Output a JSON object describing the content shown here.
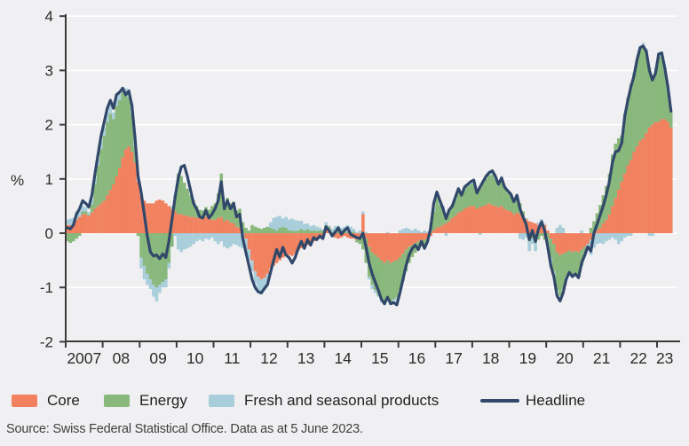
{
  "figure": {
    "y_axis": {
      "unit_label": "%",
      "min": -2,
      "max": 4,
      "ticks": [
        4,
        3,
        2,
        1,
        0,
        -1,
        -2
      ]
    },
    "x_axis": {
      "year_labels": [
        "2007",
        "08",
        "09",
        "10",
        "11",
        "12",
        "13",
        "14",
        "15",
        "16",
        "17",
        "18",
        "19",
        "20",
        "21",
        "22",
        "23"
      ]
    },
    "legend": [
      {
        "label": "Core",
        "color": "#F1815F"
      },
      {
        "label": "Energy",
        "color": "#89B87C"
      },
      {
        "label": "Fresh and seasonal products",
        "color": "#A9CEDB"
      },
      {
        "label": "Headline",
        "color": "#31486B"
      }
    ],
    "source_note": "Source: Swiss Federal Statistical Office. Data as at 5 June 2023.",
    "colors": {
      "background": "#f0f0f2",
      "gridline": "#ffffff",
      "axis": "#3b3b3b",
      "tick_text": "#2b2b2b"
    }
  },
  "chart_data": {
    "type": "bar",
    "subtype": "stacked-bars-with-line-overlay",
    "x_start": "2007-01",
    "x_end": "2023-05",
    "frequency": "monthly",
    "ylim": [
      -2,
      4
    ],
    "ylabel": "%",
    "grid": "horizontal-white",
    "legend_position": "bottom",
    "series": [
      {
        "name": "Core",
        "role": "bar",
        "color": "#F1815F",
        "values": [
          0.15,
          0.15,
          0.18,
          0.25,
          0.3,
          0.35,
          0.35,
          0.32,
          0.38,
          0.45,
          0.5,
          0.55,
          0.6,
          0.7,
          0.8,
          0.9,
          1.05,
          1.2,
          1.4,
          1.55,
          1.6,
          1.5,
          1.3,
          0.95,
          0.7,
          0.6,
          0.55,
          0.55,
          0.55,
          0.6,
          0.62,
          0.6,
          0.55,
          0.5,
          0.45,
          0.4,
          0.35,
          0.35,
          0.33,
          0.32,
          0.3,
          0.3,
          0.28,
          0.28,
          0.3,
          0.3,
          0.28,
          0.25,
          0.25,
          0.28,
          0.3,
          0.22,
          0.25,
          0.2,
          0.18,
          0.12,
          0.1,
          0.0,
          -0.1,
          -0.3,
          -0.5,
          -0.7,
          -0.8,
          -0.85,
          -0.82,
          -0.75,
          -0.65,
          -0.6,
          -0.55,
          -0.5,
          -0.45,
          -0.42,
          -0.4,
          -0.42,
          -0.38,
          -0.32,
          -0.28,
          -0.25,
          -0.22,
          -0.2,
          -0.15,
          -0.12,
          -0.1,
          -0.08,
          0.1,
          0.08,
          -0.05,
          -0.08,
          -0.1,
          -0.08,
          -0.05,
          -0.08,
          -0.1,
          -0.1,
          -0.12,
          -0.1,
          0.35,
          -0.1,
          -0.25,
          -0.35,
          -0.4,
          -0.45,
          -0.5,
          -0.55,
          -0.5,
          -0.55,
          -0.52,
          -0.5,
          -0.45,
          -0.38,
          -0.3,
          -0.25,
          -0.22,
          -0.18,
          -0.15,
          -0.12,
          -0.12,
          -0.1,
          -0.05,
          0.05,
          0.1,
          0.12,
          0.15,
          0.18,
          0.22,
          0.28,
          0.32,
          0.38,
          0.4,
          0.45,
          0.48,
          0.5,
          0.5,
          0.45,
          0.48,
          0.5,
          0.52,
          0.55,
          0.52,
          0.5,
          0.48,
          0.5,
          0.45,
          0.42,
          0.4,
          0.35,
          0.38,
          0.35,
          0.3,
          0.25,
          0.22,
          0.2,
          0.18,
          0.15,
          0.18,
          0.15,
          0.05,
          -0.1,
          -0.2,
          -0.35,
          -0.4,
          -0.38,
          -0.35,
          -0.32,
          -0.35,
          -0.33,
          -0.35,
          -0.3,
          -0.25,
          -0.2,
          -0.12,
          -0.05,
          0.05,
          0.1,
          0.18,
          0.25,
          0.35,
          0.5,
          0.65,
          0.8,
          0.95,
          1.1,
          1.25,
          1.35,
          1.5,
          1.6,
          1.7,
          1.75,
          1.85,
          1.95,
          2.0,
          2.05,
          2.05,
          2.1,
          2.1,
          2.05,
          1.95
        ]
      },
      {
        "name": "Energy",
        "role": "bar",
        "color": "#89B87C",
        "values": [
          -0.15,
          -0.18,
          -0.15,
          -0.1,
          -0.05,
          0.05,
          0.05,
          0.02,
          0.15,
          0.45,
          0.75,
          1.0,
          1.2,
          1.35,
          1.4,
          1.2,
          1.3,
          1.25,
          1.2,
          1.0,
          0.9,
          0.7,
          0.3,
          -0.05,
          -0.45,
          -0.6,
          -0.75,
          -0.85,
          -0.95,
          -1.0,
          -0.95,
          -0.9,
          -0.85,
          -0.55,
          -0.25,
          0.3,
          0.75,
          0.7,
          0.6,
          0.5,
          0.4,
          0.3,
          0.22,
          0.15,
          0.12,
          0.18,
          0.15,
          0.25,
          0.3,
          0.45,
          0.8,
          0.35,
          0.4,
          0.35,
          0.4,
          0.3,
          0.35,
          0.2,
          0.1,
          0.05,
          0.15,
          0.12,
          0.1,
          0.08,
          0.1,
          0.12,
          0.1,
          0.08,
          0.05,
          0.1,
          0.12,
          0.1,
          0.05,
          0.05,
          0.04,
          0.05,
          0.08,
          0.05,
          0.08,
          0.05,
          0.05,
          0.04,
          0.05,
          0.05,
          0.05,
          0.04,
          0.03,
          0.05,
          0.04,
          0.05,
          0.04,
          0.03,
          0.02,
          0.03,
          -0.05,
          -0.1,
          -0.3,
          -0.45,
          -0.55,
          -0.6,
          -0.65,
          -0.7,
          -0.72,
          -0.75,
          -0.7,
          -0.72,
          -0.7,
          -0.68,
          -0.6,
          -0.5,
          -0.4,
          -0.3,
          -0.22,
          -0.18,
          -0.15,
          -0.12,
          -0.1,
          -0.05,
          0.15,
          0.35,
          0.55,
          0.4,
          0.3,
          0.15,
          0.22,
          0.25,
          0.3,
          0.38,
          0.3,
          0.35,
          0.38,
          0.4,
          0.42,
          0.3,
          0.35,
          0.42,
          0.48,
          0.52,
          0.55,
          0.5,
          0.4,
          0.48,
          0.38,
          0.32,
          0.3,
          0.22,
          0.28,
          0.2,
          0.1,
          0.02,
          -0.15,
          -0.1,
          -0.18,
          -0.12,
          -0.05,
          -0.12,
          -0.2,
          -0.35,
          -0.5,
          -0.7,
          -0.75,
          -0.65,
          -0.45,
          -0.38,
          -0.42,
          -0.4,
          -0.42,
          -0.3,
          -0.12,
          0.0,
          0.1,
          0.22,
          0.32,
          0.42,
          0.52,
          0.62,
          0.75,
          0.95,
          1.0,
          0.95,
          0.85,
          1.1,
          1.25,
          1.4,
          1.45,
          1.6,
          1.7,
          1.68,
          1.5,
          1.1,
          0.85,
          0.9,
          1.2,
          1.15,
          0.9,
          0.6,
          0.3
        ]
      },
      {
        "name": "Fresh and seasonal products",
        "role": "bar",
        "color": "#A9CEDB",
        "values": [
          0.1,
          0.12,
          0.1,
          0.15,
          0.12,
          0.1,
          0.08,
          0.05,
          0.08,
          0.1,
          0.12,
          0.15,
          0.15,
          0.18,
          0.15,
          0.12,
          0.15,
          0.12,
          0.1,
          0.12,
          0.15,
          0.18,
          0.15,
          0.1,
          -0.2,
          -0.25,
          -0.2,
          -0.18,
          -0.22,
          -0.26,
          -0.15,
          -0.1,
          -0.15,
          -0.1,
          0.05,
          -0.05,
          -0.3,
          -0.35,
          -0.3,
          -0.28,
          -0.25,
          -0.2,
          -0.15,
          -0.12,
          -0.15,
          -0.1,
          -0.12,
          -0.08,
          -0.15,
          -0.2,
          -0.15,
          -0.25,
          -0.28,
          -0.25,
          -0.2,
          -0.22,
          -0.25,
          -0.28,
          -0.25,
          -0.2,
          -0.2,
          -0.22,
          -0.25,
          -0.28,
          -0.2,
          -0.15,
          0.1,
          0.2,
          0.25,
          0.22,
          0.15,
          0.2,
          0.2,
          0.22,
          0.2,
          0.18,
          0.15,
          0.12,
          0.1,
          0.08,
          0.1,
          0.08,
          0.05,
          0.02,
          0.05,
          0.02,
          0.05,
          0.08,
          0.1,
          0.05,
          0.08,
          0.12,
          0.1,
          0.05,
          0.02,
          0.05,
          0.05,
          0.02,
          -0.05,
          -0.08,
          -0.05,
          -0.02,
          -0.05,
          -0.03,
          0.02,
          -0.05,
          -0.08,
          -0.05,
          0.05,
          0.08,
          0.1,
          0.08,
          0.05,
          0.08,
          0.05,
          0.02,
          0.05,
          0.03,
          0.05,
          0.08,
          0.1,
          0.08,
          0.05,
          -0.05,
          0.02,
          0.0,
          0.05,
          0.08,
          0.02,
          0.05,
          0.05,
          0.05,
          0.05,
          0.0,
          -0.03,
          0.03,
          0.05,
          0.05,
          0.08,
          0.05,
          0.02,
          0.05,
          0.02,
          0.05,
          0.02,
          0.0,
          0.05,
          -0.1,
          -0.12,
          -0.08,
          -0.18,
          -0.1,
          -0.15,
          0.05,
          0.08,
          0.02,
          -0.1,
          -0.15,
          -0.1,
          0.1,
          0.15,
          0.1,
          -0.05,
          -0.02,
          -0.03,
          -0.02,
          -0.05,
          0.05,
          -0.05,
          -0.05,
          -0.28,
          -0.22,
          -0.2,
          -0.18,
          -0.2,
          -0.15,
          -0.12,
          -0.08,
          -0.12,
          -0.2,
          -0.15,
          -0.08,
          -0.05,
          -0.05,
          0.0,
          0.0,
          0.05,
          0.08,
          0.05,
          -0.05,
          -0.05,
          0.1,
          0.08,
          0.1,
          0.05,
          0.05,
          0.02
        ]
      },
      {
        "name": "Headline",
        "role": "line",
        "type": "line",
        "color": "#31486B",
        "values": [
          0.1,
          0.08,
          0.15,
          0.35,
          0.45,
          0.6,
          0.55,
          0.48,
          0.7,
          1.1,
          1.45,
          1.8,
          2.05,
          2.3,
          2.45,
          2.3,
          2.55,
          2.6,
          2.67,
          2.55,
          2.62,
          2.35,
          1.75,
          1.05,
          0.75,
          0.35,
          -0.05,
          -0.35,
          -0.42,
          -0.4,
          -0.47,
          -0.38,
          -0.45,
          -0.15,
          0.25,
          0.65,
          1.0,
          1.22,
          1.25,
          1.05,
          0.8,
          0.55,
          0.45,
          0.3,
          0.28,
          0.42,
          0.28,
          0.35,
          0.45,
          0.6,
          0.95,
          0.45,
          0.6,
          0.45,
          0.55,
          0.3,
          0.35,
          -0.1,
          -0.35,
          -0.6,
          -0.85,
          -1.0,
          -1.08,
          -1.1,
          -1.02,
          -0.95,
          -0.72,
          -0.5,
          -0.3,
          -0.44,
          -0.26,
          -0.4,
          -0.45,
          -0.55,
          -0.45,
          -0.28,
          -0.15,
          -0.28,
          -0.12,
          -0.22,
          -0.08,
          -0.12,
          -0.05,
          -0.1,
          0.12,
          0.05,
          -0.05,
          0.02,
          0.1,
          -0.02,
          0.05,
          0.1,
          -0.02,
          -0.05,
          -0.08,
          -0.1,
          0.0,
          -0.25,
          -0.55,
          -0.75,
          -0.9,
          -1.05,
          -1.22,
          -1.3,
          -1.18,
          -1.3,
          -1.28,
          -1.32,
          -1.1,
          -0.85,
          -0.6,
          -0.4,
          -0.28,
          -0.22,
          -0.3,
          -0.15,
          -0.28,
          -0.15,
          0.1,
          0.55,
          0.76,
          0.6,
          0.45,
          0.27,
          0.43,
          0.5,
          0.66,
          0.82,
          0.7,
          0.85,
          0.9,
          0.95,
          0.98,
          0.74,
          0.85,
          0.95,
          1.05,
          1.12,
          1.15,
          1.05,
          0.9,
          1.02,
          0.85,
          0.78,
          0.72,
          0.58,
          0.7,
          0.45,
          0.3,
          0.16,
          -0.12,
          0.05,
          -0.15,
          0.08,
          0.21,
          0.05,
          -0.25,
          -0.6,
          -0.8,
          -1.15,
          -1.25,
          -1.1,
          -0.85,
          -0.72,
          -0.8,
          -0.75,
          -0.82,
          -0.55,
          -0.41,
          -0.25,
          -0.33,
          0.0,
          0.16,
          0.33,
          0.5,
          0.7,
          0.95,
          1.3,
          1.5,
          1.52,
          1.66,
          2.15,
          2.45,
          2.7,
          2.9,
          3.2,
          3.42,
          3.45,
          3.35,
          3.0,
          2.82,
          2.95,
          3.3,
          3.32,
          3.05,
          2.7,
          2.25
        ]
      }
    ]
  }
}
